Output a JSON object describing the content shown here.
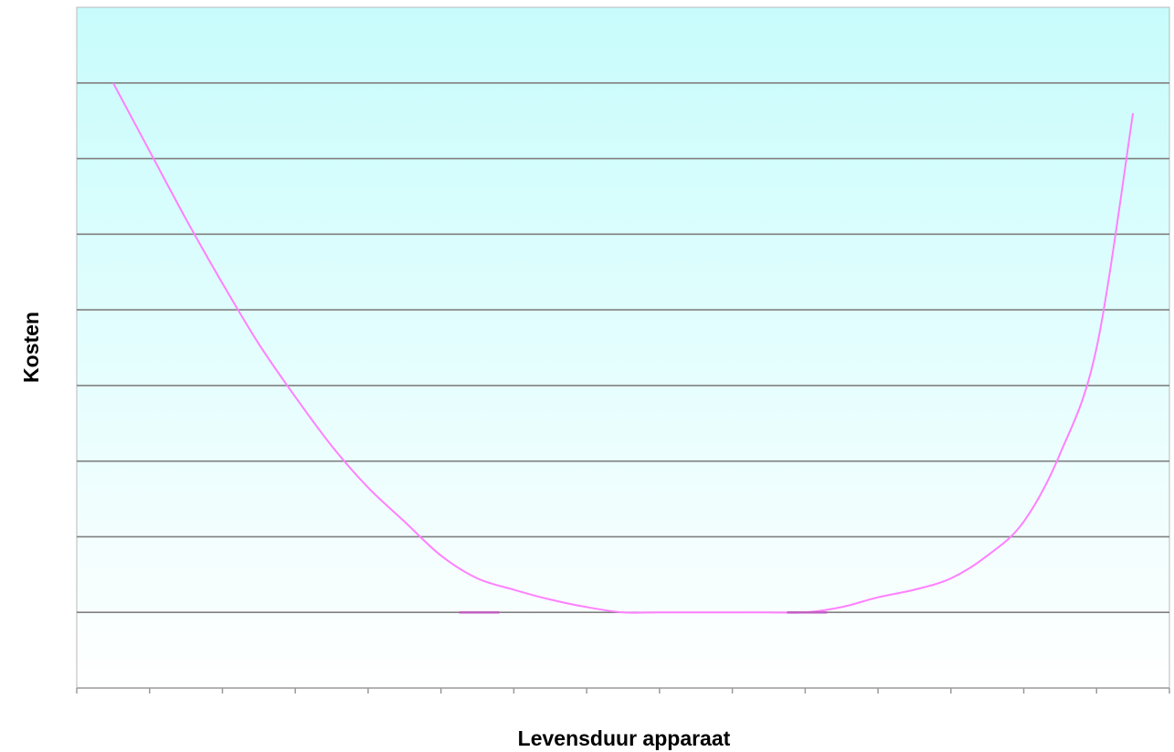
{
  "chart_data": {
    "type": "line",
    "title": "",
    "xlabel": "Levensduur apparaat",
    "ylabel": "Kosten",
    "x": [
      0,
      0.5,
      1,
      1.5,
      2,
      2.5,
      3,
      3.5,
      4,
      4.5,
      5,
      5.5,
      6,
      6.5,
      7,
      7.5,
      8,
      8.5,
      9,
      9.5,
      10,
      10.5,
      11,
      11.5,
      12,
      12.5,
      13,
      13.5,
      14
    ],
    "series": [
      {
        "values": [
          8.0,
          7.1,
          6.2,
          5.35,
          4.55,
          3.85,
          3.2,
          2.65,
          2.2,
          1.75,
          1.45,
          1.3,
          1.17,
          1.07,
          1.0,
          1.0,
          1.0,
          1.0,
          1.0,
          1.0,
          1.07,
          1.2,
          1.3,
          1.45,
          1.75,
          2.2,
          3.1,
          4.5,
          7.6
        ]
      }
    ],
    "xlim": [
      -0.5,
      14.5
    ],
    "ylim": [
      0,
      9
    ],
    "x_tick_count": 15,
    "grid": true,
    "legend": "none",
    "colors": {
      "line": "#ff80ff",
      "line_highlight": "#c060c0",
      "gridline": "#808080",
      "plot_top": "#c8fcfc",
      "plot_bottom": "#ffffff",
      "axis": "#9a9a9a"
    }
  }
}
